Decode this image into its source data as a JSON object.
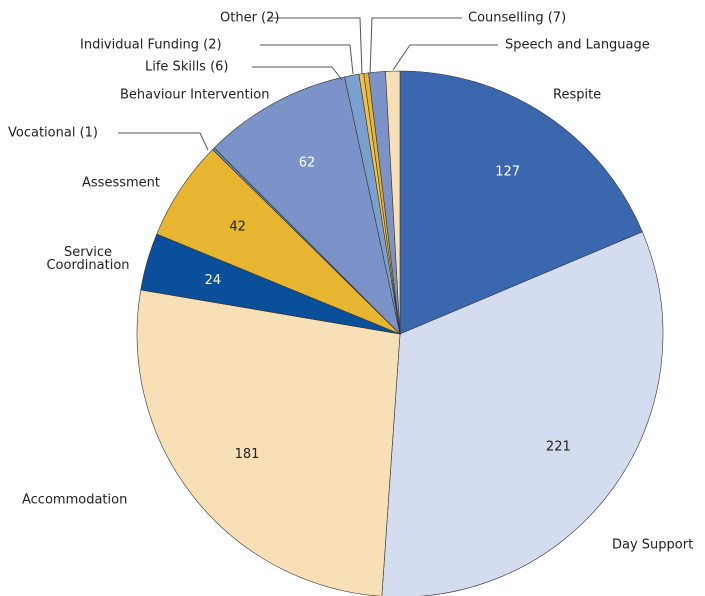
{
  "chart_data": {
    "type": "pie",
    "categories": [
      "Respite",
      "Day Support",
      "Accommodation",
      "Service Coordination",
      "Assessment",
      "Vocational (1)",
      "Behaviour Intervention",
      "Life Skills (6)",
      "Individual Funding (2)",
      "Other (2)",
      "Counselling (7)",
      "Speech and Language"
    ],
    "values": [
      127,
      221,
      181,
      24,
      42,
      1,
      62,
      6,
      2,
      2,
      7,
      6
    ],
    "colors": [
      "#3a67ad",
      "#d3ddef",
      "#f7e0b5",
      "#0a4f9a",
      "#e8b530",
      "#5b8bbf",
      "#7b93c8",
      "#7aa0cf",
      "#f1c04b",
      "#e8b530",
      "#7b93c8",
      "#f7e0b5"
    ]
  }
}
